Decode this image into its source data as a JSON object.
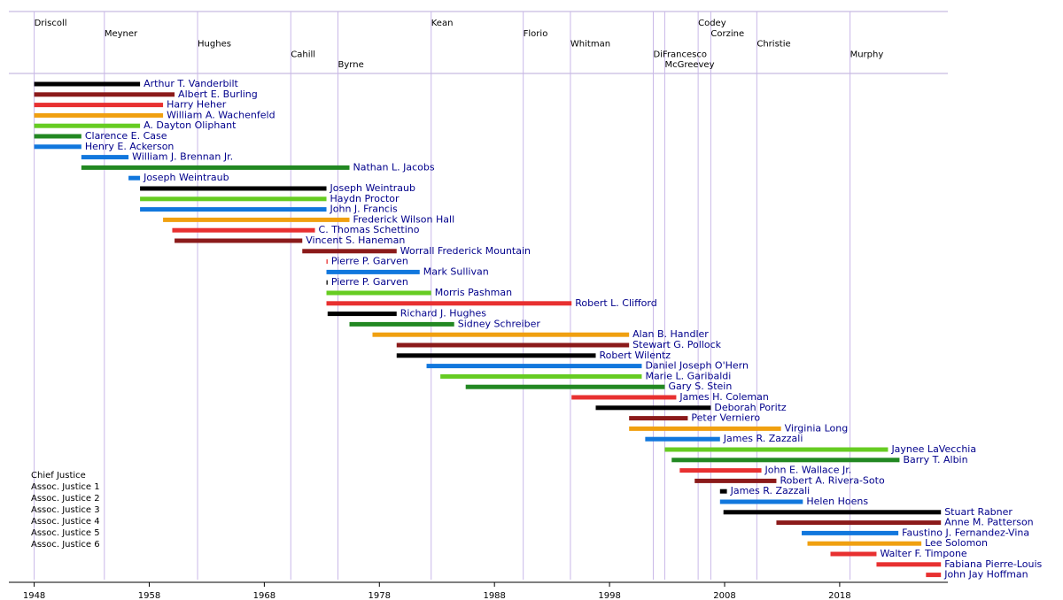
{
  "chart_data": {
    "type": "timeline",
    "xlim": [
      1945.8,
      2027.4
    ],
    "xticks": [
      1948,
      1958,
      1968,
      1978,
      1988,
      1998,
      2008,
      2018
    ],
    "governors": [
      {
        "name": "Driscoll",
        "start": 1948
      },
      {
        "name": "Meyner",
        "start": 1954.1
      },
      {
        "name": "Hughes",
        "start": 1962.2
      },
      {
        "name": "Cahill",
        "start": 1970.3
      },
      {
        "name": "Byrne",
        "start": 1974.4
      },
      {
        "name": "Kean",
        "start": 1982.5
      },
      {
        "name": "Florio",
        "start": 1990.5
      },
      {
        "name": "Whitman",
        "start": 1994.6
      },
      {
        "name": "DiFrancesco",
        "start": 2001.8
      },
      {
        "name": "McGreevey",
        "start": 2002.8
      },
      {
        "name": "Codey",
        "start": 2005.7
      },
      {
        "name": "Corzine",
        "start": 2006.8
      },
      {
        "name": "Christie",
        "start": 2010.8
      },
      {
        "name": "Murphy",
        "start": 2018.9
      }
    ],
    "seats": [
      {
        "name": "Chief Justice",
        "color": "#000000"
      },
      {
        "name": "Assoc. Justice 1",
        "color": "#8b1a1a"
      },
      {
        "name": "Assoc. Justice 2",
        "color": "#e83030"
      },
      {
        "name": "Assoc. Justice 3",
        "color": "#f0a010"
      },
      {
        "name": "Assoc. Justice 4",
        "color": "#66cc22"
      },
      {
        "name": "Assoc. Justice 5",
        "color": "#228822"
      },
      {
        "name": "Assoc. Justice 6",
        "color": "#1177dd"
      }
    ],
    "justices": [
      {
        "name": "Arthur T. Vanderbilt",
        "seat": 0,
        "start": 1948,
        "end": 1957.2
      },
      {
        "name": "Albert E. Burling",
        "seat": 1,
        "start": 1948,
        "end": 1960.2
      },
      {
        "name": "Harry Heher",
        "seat": 2,
        "start": 1948,
        "end": 1959.2
      },
      {
        "name": "William A. Wachenfeld",
        "seat": 3,
        "start": 1948,
        "end": 1959.2
      },
      {
        "name": "A. Dayton Oliphant",
        "seat": 4,
        "start": 1948,
        "end": 1957.2
      },
      {
        "name": "Clarence E. Case",
        "seat": 5,
        "start": 1948,
        "end": 1952.1
      },
      {
        "name": "Henry E. Ackerson",
        "seat": 6,
        "start": 1948,
        "end": 1952.1
      },
      {
        "name": "William J. Brennan Jr.",
        "seat": 6,
        "start": 1952.1,
        "end": 1956.2
      },
      {
        "name": "Nathan L. Jacobs",
        "seat": 5,
        "start": 1952.1,
        "end": 1975.4
      },
      {
        "name": "Joseph Weintraub",
        "seat": 6,
        "start": 1956.2,
        "end": 1957.2
      },
      {
        "name": "Joseph Weintraub",
        "seat": 0,
        "start": 1957.2,
        "end": 1973.4
      },
      {
        "name": "Haydn Proctor",
        "seat": 4,
        "start": 1957.2,
        "end": 1973.4
      },
      {
        "name": "John J. Francis",
        "seat": 6,
        "start": 1957.2,
        "end": 1973.4
      },
      {
        "name": "Frederick Wilson Hall",
        "seat": 3,
        "start": 1959.2,
        "end": 1975.4
      },
      {
        "name": "C. Thomas Schettino",
        "seat": 2,
        "start": 1960,
        "end": 1972.4
      },
      {
        "name": "Vincent S. Haneman",
        "seat": 1,
        "start": 1960.2,
        "end": 1971.3
      },
      {
        "name": "Worrall Frederick Mountain",
        "seat": 1,
        "start": 1971.3,
        "end": 1979.5
      },
      {
        "name": "Pierre P. Garven",
        "seat": 2,
        "start": 1973.4,
        "end": 1973.5
      },
      {
        "name": "Mark Sullivan",
        "seat": 6,
        "start": 1973.4,
        "end": 1981.5
      },
      {
        "name": "Pierre P. Garven",
        "seat": 0,
        "start": 1973.4,
        "end": 1973.5
      },
      {
        "name": "Morris Pashman",
        "seat": 4,
        "start": 1973.4,
        "end": 1982.5
      },
      {
        "name": "Robert L. Clifford",
        "seat": 2,
        "start": 1973.4,
        "end": 1994.7
      },
      {
        "name": "Richard J. Hughes",
        "seat": 0,
        "start": 1973.5,
        "end": 1979.5
      },
      {
        "name": "Sidney Schreiber",
        "seat": 5,
        "start": 1975.4,
        "end": 1984.5
      },
      {
        "name": "Alan B. Handler",
        "seat": 3,
        "start": 1977.4,
        "end": 1999.7
      },
      {
        "name": "Stewart G. Pollock",
        "seat": 1,
        "start": 1979.5,
        "end": 1999.7
      },
      {
        "name": "Robert Wilentz",
        "seat": 0,
        "start": 1979.5,
        "end": 1996.8
      },
      {
        "name": "Daniel Joseph O'Hern",
        "seat": 6,
        "start": 1982.1,
        "end": 2000.8
      },
      {
        "name": "Marie L. Garibaldi",
        "seat": 4,
        "start": 1983.3,
        "end": 2000.8
      },
      {
        "name": "Gary S. Stein",
        "seat": 5,
        "start": 1985.5,
        "end": 2002.8
      },
      {
        "name": "James H. Coleman",
        "seat": 2,
        "start": 1994.7,
        "end": 2003.8
      },
      {
        "name": "Deborah Poritz",
        "seat": 0,
        "start": 1996.8,
        "end": 2006.8
      },
      {
        "name": "Peter Verniero",
        "seat": 1,
        "start": 1999.7,
        "end": 2004.8
      },
      {
        "name": "Virginia Long",
        "seat": 3,
        "start": 1999.7,
        "end": 2012.9
      },
      {
        "name": "James R. Zazzali",
        "seat": 6,
        "start": 2001.1,
        "end": 2007.6
      },
      {
        "name": "Jaynee LaVecchia",
        "seat": 4,
        "start": 2002.8,
        "end": 2022.2
      },
      {
        "name": "Barry T. Albin",
        "seat": 5,
        "start": 2003.4,
        "end": 2023.2
      },
      {
        "name": "John E. Wallace Jr.",
        "seat": 2,
        "start": 2004.1,
        "end": 2011.2
      },
      {
        "name": "Robert A. Rivera-Soto",
        "seat": 1,
        "start": 2005.4,
        "end": 2012.5
      },
      {
        "name": "James R. Zazzali",
        "seat": 0,
        "start": 2007.6,
        "end": 2008.2
      },
      {
        "name": "Helen Hoens",
        "seat": 6,
        "start": 2007.6,
        "end": 2014.8
      },
      {
        "name": "Stuart Rabner",
        "seat": 0,
        "start": 2007.9,
        "end": 2026.8
      },
      {
        "name": "Anne M. Patterson",
        "seat": 1,
        "start": 2012.5,
        "end": 2026.8
      },
      {
        "name": "Faustino J. Fernandez-Vina",
        "seat": 6,
        "start": 2014.7,
        "end": 2023.1
      },
      {
        "name": "Lee Solomon",
        "seat": 3,
        "start": 2015.2,
        "end": 2025.1
      },
      {
        "name": "Walter F. Timpone",
        "seat": 2,
        "start": 2017.2,
        "end": 2021.2
      },
      {
        "name": "Fabiana Pierre-Louis",
        "seat": 2,
        "start": 2021.2,
        "end": 2026.8
      },
      {
        "name": "John Jay Hoffman",
        "seat": 2,
        "start": 2025.5,
        "end": 2026.8
      }
    ]
  }
}
